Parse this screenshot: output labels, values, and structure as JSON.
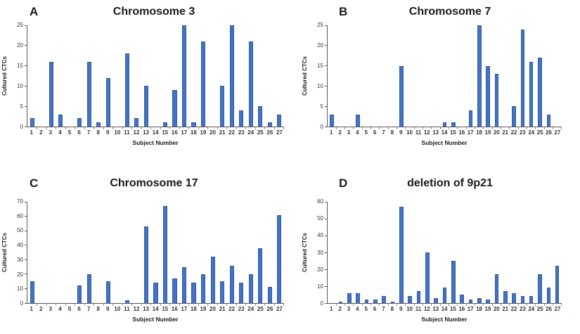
{
  "figure": {
    "background": "#ffffff",
    "layout": "2x2 grid of bar charts, no gridlines, legend absent"
  },
  "colors": {
    "bar_fill": "#4472C4",
    "bar_edge": "#2E5B9F",
    "axis_line": "#595959",
    "x_tick": "#C97B5A",
    "text": "#1A1A1A"
  },
  "chart_data": [
    {
      "type": "bar",
      "panel_label": "A",
      "title": "Chromosome 3",
      "xlabel": "Subject Number",
      "ylabel": "Cultured CTCs",
      "ylim": [
        0,
        25
      ],
      "ytick_step": 5,
      "grid": false,
      "categories": [
        "1",
        "2",
        "3",
        "4",
        "5",
        "6",
        "7",
        "8",
        "9",
        "10",
        "11",
        "12",
        "13",
        "14",
        "15",
        "16",
        "17",
        "18",
        "19",
        "20",
        "21",
        "22",
        "23",
        "24",
        "25",
        "26",
        "27"
      ],
      "values": [
        2,
        0,
        16,
        3,
        0,
        2,
        16,
        1,
        12,
        0,
        18,
        2,
        10,
        0,
        1,
        9,
        25,
        1,
        21,
        0,
        10,
        25,
        4,
        21,
        5,
        1,
        3
      ]
    },
    {
      "type": "bar",
      "panel_label": "B",
      "title": "Chromosome 7",
      "xlabel": "Subject Number",
      "ylabel": "Cultured CTCs",
      "ylim": [
        0,
        25
      ],
      "ytick_step": 5,
      "grid": false,
      "categories": [
        "1",
        "2",
        "3",
        "4",
        "5",
        "6",
        "7",
        "8",
        "9",
        "10",
        "11",
        "12",
        "13",
        "14",
        "15",
        "16",
        "17",
        "18",
        "19",
        "20",
        "21",
        "22",
        "23",
        "24",
        "25",
        "26",
        "27"
      ],
      "values": [
        3,
        0,
        0,
        3,
        0,
        0,
        0,
        0,
        15,
        0,
        0,
        0,
        0,
        1,
        1,
        0,
        4,
        25,
        15,
        13,
        0,
        5,
        24,
        16,
        17,
        3,
        0
      ]
    },
    {
      "type": "bar",
      "panel_label": "C",
      "title": "Chromosome 17",
      "xlabel": "Subject Number",
      "ylabel": "Cultured CTCs",
      "ylim": [
        0,
        70
      ],
      "ytick_step": 10,
      "grid": false,
      "categories": [
        "1",
        "2",
        "3",
        "4",
        "5",
        "6",
        "7",
        "8",
        "9",
        "10",
        "11",
        "12",
        "13",
        "14",
        "15",
        "16",
        "17",
        "18",
        "19",
        "20",
        "21",
        "22",
        "23",
        "24",
        "25",
        "26",
        "27"
      ],
      "values": [
        15,
        0,
        0,
        0,
        0,
        12,
        20,
        0,
        15,
        0,
        2,
        0,
        53,
        14,
        67,
        17,
        25,
        14,
        20,
        32,
        15,
        26,
        14,
        20,
        38,
        11,
        61
      ]
    },
    {
      "type": "bar",
      "panel_label": "D",
      "title": "deletion of 9p21",
      "xlabel": "Subject Number",
      "ylabel": "Cultured CTCs",
      "ylim": [
        0,
        60
      ],
      "ytick_step": 10,
      "grid": false,
      "categories": [
        "1",
        "2",
        "3",
        "4",
        "5",
        "6",
        "7",
        "8",
        "9",
        "10",
        "11",
        "12",
        "13",
        "14",
        "15",
        "16",
        "17",
        "18",
        "19",
        "20",
        "21",
        "22",
        "23",
        "24",
        "25",
        "26",
        "27"
      ],
      "values": [
        0,
        1,
        6,
        6,
        2,
        2,
        4,
        1,
        57,
        4,
        7,
        30,
        3,
        9,
        25,
        5,
        2,
        3,
        2,
        17,
        7,
        6,
        4,
        4,
        17,
        9,
        22
      ]
    }
  ]
}
